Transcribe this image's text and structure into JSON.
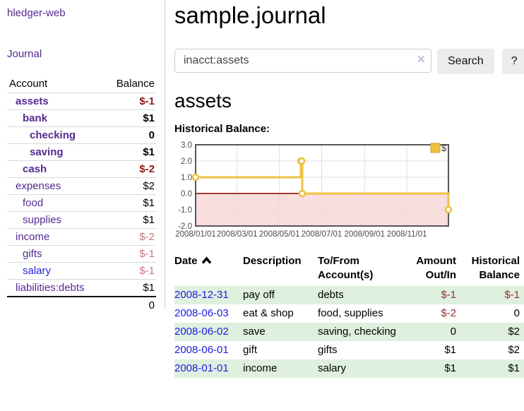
{
  "app": {
    "title": "hledger-web"
  },
  "sidebar": {
    "journal_link": "Journal",
    "accounts_table": {
      "headers": [
        "Account",
        "Balance"
      ],
      "rows": [
        {
          "name": "assets",
          "depth": 0,
          "bold": true,
          "balance": "$-1",
          "tone": "neg-strong"
        },
        {
          "name": "bank",
          "depth": 1,
          "bold": true,
          "balance": "$1",
          "tone": "pos"
        },
        {
          "name": "checking",
          "depth": 2,
          "bold": true,
          "balance": "0",
          "tone": "pos"
        },
        {
          "name": "saving",
          "depth": 2,
          "bold": true,
          "balance": "$1",
          "tone": "pos"
        },
        {
          "name": "cash",
          "depth": 1,
          "bold": true,
          "balance": "$-2",
          "tone": "neg-strong"
        },
        {
          "name": "expenses",
          "depth": 0,
          "bold": false,
          "balance": "$2",
          "tone": "pos"
        },
        {
          "name": "food",
          "depth": 1,
          "bold": false,
          "balance": "$1",
          "tone": "pos"
        },
        {
          "name": "supplies",
          "depth": 1,
          "bold": false,
          "balance": "$1",
          "tone": "pos"
        },
        {
          "name": "income",
          "depth": 0,
          "bold": false,
          "balance": "$-2",
          "tone": "neg-muted"
        },
        {
          "name": "gifts",
          "depth": 1,
          "bold": false,
          "balance": "$-1",
          "tone": "neg-muted"
        },
        {
          "name": "salary",
          "depth": 1,
          "bold": false,
          "balance": "$-1",
          "tone": "neg-muted",
          "link_tone": "unvisited"
        },
        {
          "name": "liabilities:debts",
          "depth": 0,
          "bold": false,
          "balance": "$1",
          "tone": "pos"
        }
      ],
      "total": "0"
    }
  },
  "header": {
    "title": "sample.journal"
  },
  "search": {
    "value": "inacct:assets",
    "clear_icon": "×",
    "button_label": "Search",
    "help_label": "?"
  },
  "account_page": {
    "title": "assets",
    "chart_label": "Historical Balance:"
  },
  "chart_data": {
    "type": "line",
    "style": "step",
    "title": "Historical Balance",
    "series": [
      {
        "name": "$",
        "color": "#edc240",
        "points": [
          [
            "2008-01-01",
            1
          ],
          [
            "2008-06-01",
            2
          ],
          [
            "2008-06-02",
            2
          ],
          [
            "2008-06-03",
            0
          ],
          [
            "2008-12-31",
            -1
          ]
        ]
      }
    ],
    "x_range": [
      "2008-01-01",
      "2008-12-31"
    ],
    "x_ticks": [
      "2008/01/01",
      "2008/03/01",
      "2008/05/01",
      "2008/07/01",
      "2008/09/01",
      "2008/11/01"
    ],
    "y_ticks": [
      "3.0",
      "2.0",
      "1.0",
      "0.0",
      "-1.0",
      "-2.0"
    ],
    "ylim": [
      -2,
      3
    ],
    "legend": {
      "label": "$",
      "position": "top-right"
    },
    "grid": true,
    "colors": {
      "negative_region": "#fadddd",
      "zero_line": "#8b0000",
      "gridline": "#e0e0e0",
      "plot_border": "#565656",
      "axis_text": "#4c4c4c",
      "marker_fill": "#ffffff",
      "legend_box_border": "#c9a22c"
    }
  },
  "register": {
    "columns": [
      {
        "label": "Date",
        "align": "left",
        "sorted": "asc"
      },
      {
        "label": "Description",
        "align": "left"
      },
      {
        "label": "To/From Account(s)",
        "align": "left"
      },
      {
        "label": "Amount Out/In",
        "align": "right"
      },
      {
        "label": "Historical Balance",
        "align": "right"
      }
    ],
    "rows": [
      {
        "date": "2008-12-31",
        "description": "pay off",
        "accounts": "debts",
        "amount": "$-1",
        "amount_tone": "neg",
        "balance": "$-1",
        "balance_tone": "neg",
        "shaded": true
      },
      {
        "date": "2008-06-03",
        "description": "eat & shop",
        "accounts": "food, supplies",
        "amount": "$-2",
        "amount_tone": "neg",
        "balance": "0",
        "balance_tone": "pos",
        "shaded": false
      },
      {
        "date": "2008-06-02",
        "description": "save",
        "accounts": "saving, checking",
        "amount": "0",
        "amount_tone": "pos",
        "balance": "$2",
        "balance_tone": "pos",
        "shaded": true
      },
      {
        "date": "2008-06-01",
        "description": "gift",
        "accounts": "gifts",
        "amount": "$1",
        "amount_tone": "pos",
        "balance": "$2",
        "balance_tone": "pos",
        "shaded": false
      },
      {
        "date": "2008-01-01",
        "description": "income",
        "accounts": "salary",
        "amount": "$1",
        "amount_tone": "pos",
        "balance": "$1",
        "balance_tone": "pos",
        "shaded": true
      }
    ]
  }
}
